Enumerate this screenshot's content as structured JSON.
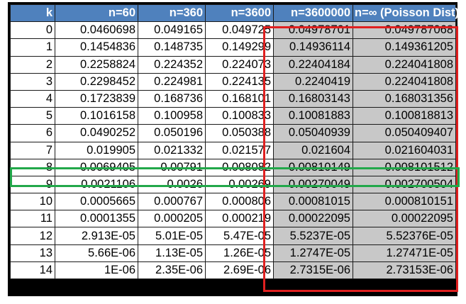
{
  "headers": [
    "k",
    "n=60",
    "n=360",
    "n=3600",
    "n=3600000",
    "n=∞ (Poisson Dist)"
  ],
  "rows": [
    [
      "0",
      "0.0460698",
      "0.049165",
      "0.049725",
      "0.04978701",
      "0.049787068"
    ],
    [
      "1",
      "0.1454836",
      "0.148735",
      "0.149299",
      "0.14936114",
      "0.149361205"
    ],
    [
      "2",
      "0.2258824",
      "0.224352",
      "0.224073",
      "0.22404184",
      "0.224041808"
    ],
    [
      "3",
      "0.2298452",
      "0.224981",
      "0.224135",
      "0.2240419",
      "0.224041808"
    ],
    [
      "4",
      "0.1723839",
      "0.168736",
      "0.168101",
      "0.16803143",
      "0.168031356"
    ],
    [
      "5",
      "0.1016158",
      "0.100958",
      "0.100833",
      "0.10081883",
      "0.100818813"
    ],
    [
      "6",
      "0.0490252",
      "0.050196",
      "0.050388",
      "0.05040939",
      "0.050409407"
    ],
    [
      "7",
      "0.019905",
      "0.021332",
      "0.021577",
      "0.021604",
      "0.021604031"
    ],
    [
      "8",
      "0.0069405",
      "0.00791",
      "0.008082",
      "0.00810149",
      "0.008101512"
    ],
    [
      "9",
      "0.0021106",
      "0.0026",
      "0.00269",
      "0.00270049",
      "0.002700504"
    ],
    [
      "10",
      "0.0005665",
      "0.000767",
      "0.000806",
      "0.00081015",
      "0.000810151"
    ],
    [
      "11",
      "0.0001355",
      "0.000205",
      "0.000219",
      "0.00022095",
      "0.00022095"
    ],
    [
      "12",
      "2.913E-05",
      "5.01E-05",
      "5.47E-05",
      "5.5237E-05",
      "5.52376E-05"
    ],
    [
      "13",
      "5.66E-06",
      "1.13E-05",
      "1.26E-05",
      "1.2747E-05",
      "1.27471E-05"
    ],
    [
      "14",
      "1E-06",
      "2.35E-06",
      "2.69E-06",
      "2.7315E-06",
      "2.73153E-06"
    ]
  ],
  "colors": {
    "header_bg": "#4f81bd",
    "shaded_cell": "#c8c8c8",
    "red_highlight": "#e02020",
    "green_highlight": "#22a84a"
  },
  "highlights": {
    "red_box_columns": [
      "n=3600000",
      "n=∞ (Poisson Dist)"
    ],
    "green_box_row_k": "8"
  }
}
